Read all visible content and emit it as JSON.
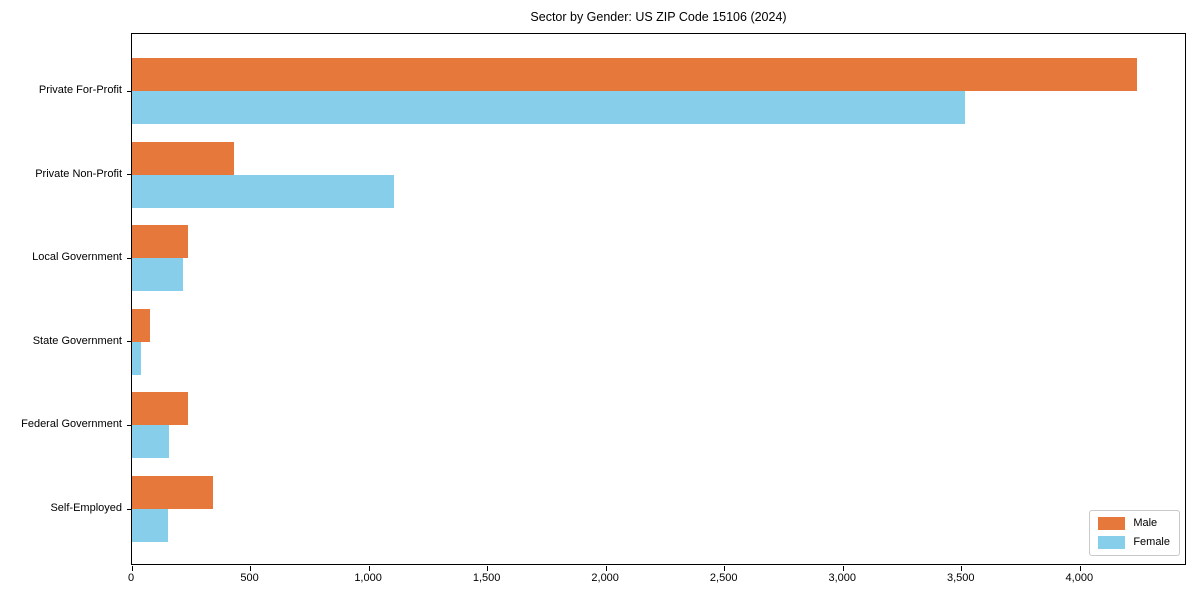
{
  "chart_data": {
    "type": "bar",
    "orientation": "horizontal",
    "title": "Sector by Gender: US ZIP Code 15106 (2024)",
    "categories": [
      "Private For-Profit",
      "Private Non-Profit",
      "Local Government",
      "State Government",
      "Federal Government",
      "Self-Employed"
    ],
    "series": [
      {
        "name": "Male",
        "color": "#e6783c",
        "values": [
          4240,
          430,
          235,
          75,
          235,
          343
        ]
      },
      {
        "name": "Female",
        "color": "#87ceeb",
        "values": [
          3515,
          1105,
          215,
          38,
          157,
          153
        ]
      }
    ],
    "xlabel": "",
    "ylabel": "",
    "xlim": [
      0,
      4450
    ],
    "xticks": [
      0,
      500,
      1000,
      1500,
      2000,
      2500,
      3000,
      3500,
      4000
    ],
    "xtick_labels": [
      "0",
      "500",
      "1,000",
      "1,500",
      "2,000",
      "2,500",
      "3,000",
      "3,500",
      "4,000"
    ],
    "grid": false,
    "legend_position": "lower right"
  }
}
